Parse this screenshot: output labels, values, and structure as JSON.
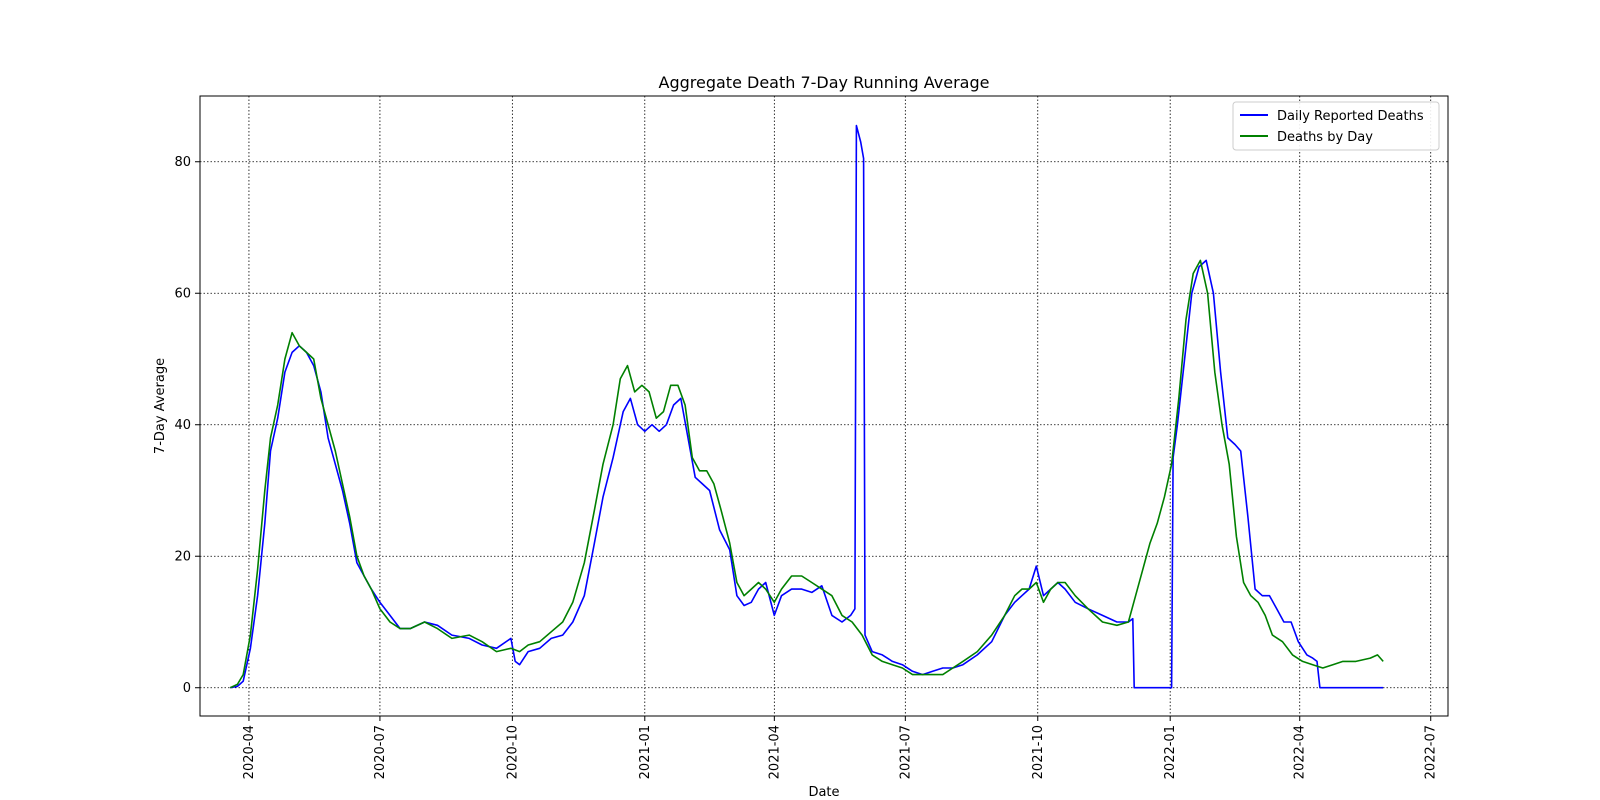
{
  "chart_data": {
    "type": "line",
    "title": "Aggregate Death 7-Day Running Average",
    "xlabel": "Date",
    "ylabel": "7-Day Average",
    "xlim": [
      "2020-02-27",
      "2022-07-13"
    ],
    "ylim": [
      -4.3,
      90.0
    ],
    "grid": true,
    "grid_style": "dotted",
    "legend_position": "top-right",
    "x_ticks": [
      "2020-04",
      "2020-07",
      "2020-10",
      "2021-01",
      "2021-04",
      "2021-07",
      "2021-10",
      "2022-01",
      "2022-04",
      "2022-07"
    ],
    "x_tick_dates": [
      "2020-04-01",
      "2020-07-01",
      "2020-10-01",
      "2021-01-01",
      "2021-04-01",
      "2021-07-01",
      "2021-10-01",
      "2022-01-01",
      "2022-04-01",
      "2022-07-01"
    ],
    "y_ticks": [
      0,
      20,
      40,
      60,
      80
    ],
    "series": [
      {
        "name": "Daily Reported Deaths",
        "color": "#0000ff",
        "points": [
          [
            "2020-03-19",
            0
          ],
          [
            "2020-03-24",
            0.2
          ],
          [
            "2020-03-28",
            1
          ],
          [
            "2020-04-02",
            6
          ],
          [
            "2020-04-07",
            14
          ],
          [
            "2020-04-12",
            25
          ],
          [
            "2020-04-16",
            36
          ],
          [
            "2020-04-21",
            41
          ],
          [
            "2020-04-26",
            48
          ],
          [
            "2020-05-01",
            51
          ],
          [
            "2020-05-06",
            52
          ],
          [
            "2020-05-11",
            51
          ],
          [
            "2020-05-16",
            49
          ],
          [
            "2020-05-21",
            45
          ],
          [
            "2020-05-26",
            38
          ],
          [
            "2020-05-31",
            34
          ],
          [
            "2020-06-05",
            30
          ],
          [
            "2020-06-10",
            25
          ],
          [
            "2020-06-15",
            19
          ],
          [
            "2020-06-20",
            17
          ],
          [
            "2020-06-25",
            15
          ],
          [
            "2020-07-01",
            13
          ],
          [
            "2020-07-08",
            11
          ],
          [
            "2020-07-15",
            9
          ],
          [
            "2020-07-22",
            9
          ],
          [
            "2020-08-01",
            10
          ],
          [
            "2020-08-10",
            9.5
          ],
          [
            "2020-08-20",
            8
          ],
          [
            "2020-09-01",
            7.5
          ],
          [
            "2020-09-10",
            6.5
          ],
          [
            "2020-09-20",
            6
          ],
          [
            "2020-09-30",
            7.5
          ],
          [
            "2020-10-03",
            4
          ],
          [
            "2020-10-06",
            3.5
          ],
          [
            "2020-10-12",
            5.5
          ],
          [
            "2020-10-20",
            6
          ],
          [
            "2020-10-28",
            7.5
          ],
          [
            "2020-11-05",
            8
          ],
          [
            "2020-11-12",
            10
          ],
          [
            "2020-11-20",
            14
          ],
          [
            "2020-11-27",
            22
          ],
          [
            "2020-12-03",
            29
          ],
          [
            "2020-12-10",
            35
          ],
          [
            "2020-12-17",
            42
          ],
          [
            "2020-12-22",
            44
          ],
          [
            "2020-12-27",
            40
          ],
          [
            "2021-01-01",
            39
          ],
          [
            "2021-01-06",
            40
          ],
          [
            "2021-01-11",
            39
          ],
          [
            "2021-01-16",
            40
          ],
          [
            "2021-01-21",
            43
          ],
          [
            "2021-01-26",
            44
          ],
          [
            "2021-01-31",
            38
          ],
          [
            "2021-02-05",
            32
          ],
          [
            "2021-02-10",
            31
          ],
          [
            "2021-02-15",
            30
          ],
          [
            "2021-02-22",
            24
          ],
          [
            "2021-03-01",
            21
          ],
          [
            "2021-03-06",
            14
          ],
          [
            "2021-03-11",
            12.5
          ],
          [
            "2021-03-16",
            13
          ],
          [
            "2021-03-21",
            15
          ],
          [
            "2021-03-26",
            16
          ],
          [
            "2021-04-01",
            11
          ],
          [
            "2021-04-06",
            14
          ],
          [
            "2021-04-13",
            15
          ],
          [
            "2021-04-20",
            15
          ],
          [
            "2021-04-27",
            14.5
          ],
          [
            "2021-05-04",
            15.5
          ],
          [
            "2021-05-11",
            11
          ],
          [
            "2021-05-18",
            10
          ],
          [
            "2021-05-24",
            11
          ],
          [
            "2021-05-27",
            12
          ],
          [
            "2021-05-28",
            85.5
          ],
          [
            "2021-05-31",
            83
          ],
          [
            "2021-06-02",
            80.5
          ],
          [
            "2021-06-03",
            8
          ],
          [
            "2021-06-08",
            5.5
          ],
          [
            "2021-06-15",
            5
          ],
          [
            "2021-06-22",
            4
          ],
          [
            "2021-06-29",
            3.5
          ],
          [
            "2021-07-06",
            2.5
          ],
          [
            "2021-07-13",
            2
          ],
          [
            "2021-07-20",
            2.5
          ],
          [
            "2021-07-27",
            3
          ],
          [
            "2021-08-03",
            3
          ],
          [
            "2021-08-10",
            3.5
          ],
          [
            "2021-08-20",
            5
          ],
          [
            "2021-08-30",
            7
          ],
          [
            "2021-09-08",
            11
          ],
          [
            "2021-09-15",
            13
          ],
          [
            "2021-09-20",
            14
          ],
          [
            "2021-09-25",
            15
          ],
          [
            "2021-09-30",
            18.5
          ],
          [
            "2021-10-05",
            14
          ],
          [
            "2021-10-10",
            15
          ],
          [
            "2021-10-15",
            16
          ],
          [
            "2021-10-20",
            15
          ],
          [
            "2021-10-27",
            13
          ],
          [
            "2021-11-05",
            12
          ],
          [
            "2021-11-15",
            11
          ],
          [
            "2021-11-25",
            10
          ],
          [
            "2021-12-03",
            10
          ],
          [
            "2021-12-06",
            10.5
          ],
          [
            "2021-12-07",
            0
          ],
          [
            "2022-01-02",
            0
          ],
          [
            "2022-01-03",
            35
          ],
          [
            "2022-01-06",
            40
          ],
          [
            "2022-01-11",
            50
          ],
          [
            "2022-01-16",
            60
          ],
          [
            "2022-01-21",
            64
          ],
          [
            "2022-01-26",
            65
          ],
          [
            "2022-01-31",
            60
          ],
          [
            "2022-02-05",
            48
          ],
          [
            "2022-02-10",
            38
          ],
          [
            "2022-02-15",
            37
          ],
          [
            "2022-02-19",
            36
          ],
          [
            "2022-02-24",
            26
          ],
          [
            "2022-03-01",
            15
          ],
          [
            "2022-03-06",
            14
          ],
          [
            "2022-03-11",
            14
          ],
          [
            "2022-03-16",
            12
          ],
          [
            "2022-03-21",
            10
          ],
          [
            "2022-03-26",
            10
          ],
          [
            "2022-03-31",
            7
          ],
          [
            "2022-04-06",
            5
          ],
          [
            "2022-04-10",
            4.5
          ],
          [
            "2022-04-13",
            4
          ],
          [
            "2022-04-15",
            0
          ],
          [
            "2022-05-29",
            0
          ]
        ]
      },
      {
        "name": "Deaths by Day",
        "color": "#008000",
        "points": [
          [
            "2020-03-19",
            0
          ],
          [
            "2020-03-24",
            0.5
          ],
          [
            "2020-03-28",
            2
          ],
          [
            "2020-04-02",
            8
          ],
          [
            "2020-04-07",
            18
          ],
          [
            "2020-04-12",
            30
          ],
          [
            "2020-04-16",
            38
          ],
          [
            "2020-04-21",
            43
          ],
          [
            "2020-04-26",
            50
          ],
          [
            "2020-05-01",
            54
          ],
          [
            "2020-05-06",
            52
          ],
          [
            "2020-05-11",
            51
          ],
          [
            "2020-05-16",
            50
          ],
          [
            "2020-05-21",
            44
          ],
          [
            "2020-05-26",
            40
          ],
          [
            "2020-05-31",
            36
          ],
          [
            "2020-06-05",
            31
          ],
          [
            "2020-06-10",
            26
          ],
          [
            "2020-06-15",
            20
          ],
          [
            "2020-06-20",
            17
          ],
          [
            "2020-06-25",
            15
          ],
          [
            "2020-07-01",
            12
          ],
          [
            "2020-07-08",
            10
          ],
          [
            "2020-07-15",
            9
          ],
          [
            "2020-07-22",
            9
          ],
          [
            "2020-08-01",
            10
          ],
          [
            "2020-08-10",
            9
          ],
          [
            "2020-08-20",
            7.5
          ],
          [
            "2020-09-01",
            8
          ],
          [
            "2020-09-10",
            7
          ],
          [
            "2020-09-20",
            5.5
          ],
          [
            "2020-09-30",
            6
          ],
          [
            "2020-10-06",
            5.5
          ],
          [
            "2020-10-12",
            6.5
          ],
          [
            "2020-10-20",
            7
          ],
          [
            "2020-10-28",
            8.5
          ],
          [
            "2020-11-05",
            10
          ],
          [
            "2020-11-12",
            13
          ],
          [
            "2020-11-20",
            19
          ],
          [
            "2020-11-27",
            27
          ],
          [
            "2020-12-03",
            34
          ],
          [
            "2020-12-10",
            40
          ],
          [
            "2020-12-15",
            47
          ],
          [
            "2020-12-20",
            49
          ],
          [
            "2020-12-25",
            45
          ],
          [
            "2020-12-30",
            46
          ],
          [
            "2021-01-04",
            45
          ],
          [
            "2021-01-09",
            41
          ],
          [
            "2021-01-14",
            42
          ],
          [
            "2021-01-19",
            46
          ],
          [
            "2021-01-24",
            46
          ],
          [
            "2021-01-29",
            43
          ],
          [
            "2021-02-03",
            35
          ],
          [
            "2021-02-08",
            33
          ],
          [
            "2021-02-13",
            33
          ],
          [
            "2021-02-18",
            31
          ],
          [
            "2021-02-23",
            27
          ],
          [
            "2021-03-01",
            22
          ],
          [
            "2021-03-06",
            16
          ],
          [
            "2021-03-11",
            14
          ],
          [
            "2021-03-16",
            15
          ],
          [
            "2021-03-21",
            16
          ],
          [
            "2021-03-26",
            15
          ],
          [
            "2021-04-01",
            13
          ],
          [
            "2021-04-06",
            15
          ],
          [
            "2021-04-13",
            17
          ],
          [
            "2021-04-20",
            17
          ],
          [
            "2021-04-27",
            16
          ],
          [
            "2021-05-04",
            15
          ],
          [
            "2021-05-11",
            14
          ],
          [
            "2021-05-18",
            11
          ],
          [
            "2021-05-25",
            10
          ],
          [
            "2021-06-01",
            8
          ],
          [
            "2021-06-08",
            5
          ],
          [
            "2021-06-15",
            4
          ],
          [
            "2021-06-22",
            3.5
          ],
          [
            "2021-06-29",
            3
          ],
          [
            "2021-07-06",
            2
          ],
          [
            "2021-07-13",
            2
          ],
          [
            "2021-07-20",
            2
          ],
          [
            "2021-07-27",
            2
          ],
          [
            "2021-08-03",
            3
          ],
          [
            "2021-08-10",
            4
          ],
          [
            "2021-08-20",
            5.5
          ],
          [
            "2021-08-30",
            8
          ],
          [
            "2021-09-08",
            11
          ],
          [
            "2021-09-15",
            14
          ],
          [
            "2021-09-20",
            15
          ],
          [
            "2021-09-25",
            15
          ],
          [
            "2021-09-30",
            16
          ],
          [
            "2021-10-05",
            13
          ],
          [
            "2021-10-10",
            15
          ],
          [
            "2021-10-15",
            16
          ],
          [
            "2021-10-20",
            16
          ],
          [
            "2021-10-27",
            14
          ],
          [
            "2021-11-05",
            12
          ],
          [
            "2021-11-15",
            10
          ],
          [
            "2021-11-25",
            9.5
          ],
          [
            "2021-12-03",
            10
          ],
          [
            "2021-12-08",
            14
          ],
          [
            "2021-12-13",
            18
          ],
          [
            "2021-12-18",
            22
          ],
          [
            "2021-12-23",
            25
          ],
          [
            "2021-12-28",
            29
          ],
          [
            "2022-01-02",
            34
          ],
          [
            "2022-01-07",
            44
          ],
          [
            "2022-01-12",
            56
          ],
          [
            "2022-01-17",
            63
          ],
          [
            "2022-01-22",
            65
          ],
          [
            "2022-01-27",
            60
          ],
          [
            "2022-02-01",
            48
          ],
          [
            "2022-02-06",
            40
          ],
          [
            "2022-02-11",
            34
          ],
          [
            "2022-02-16",
            23
          ],
          [
            "2022-02-21",
            16
          ],
          [
            "2022-02-26",
            14
          ],
          [
            "2022-03-03",
            13
          ],
          [
            "2022-03-08",
            11
          ],
          [
            "2022-03-13",
            8
          ],
          [
            "2022-03-20",
            7
          ],
          [
            "2022-03-27",
            5
          ],
          [
            "2022-04-03",
            4
          ],
          [
            "2022-04-10",
            3.5
          ],
          [
            "2022-04-17",
            3
          ],
          [
            "2022-04-24",
            3.5
          ],
          [
            "2022-05-01",
            4
          ],
          [
            "2022-05-10",
            4
          ],
          [
            "2022-05-20",
            4.5
          ],
          [
            "2022-05-25",
            5
          ],
          [
            "2022-05-29",
            4
          ]
        ]
      }
    ]
  }
}
